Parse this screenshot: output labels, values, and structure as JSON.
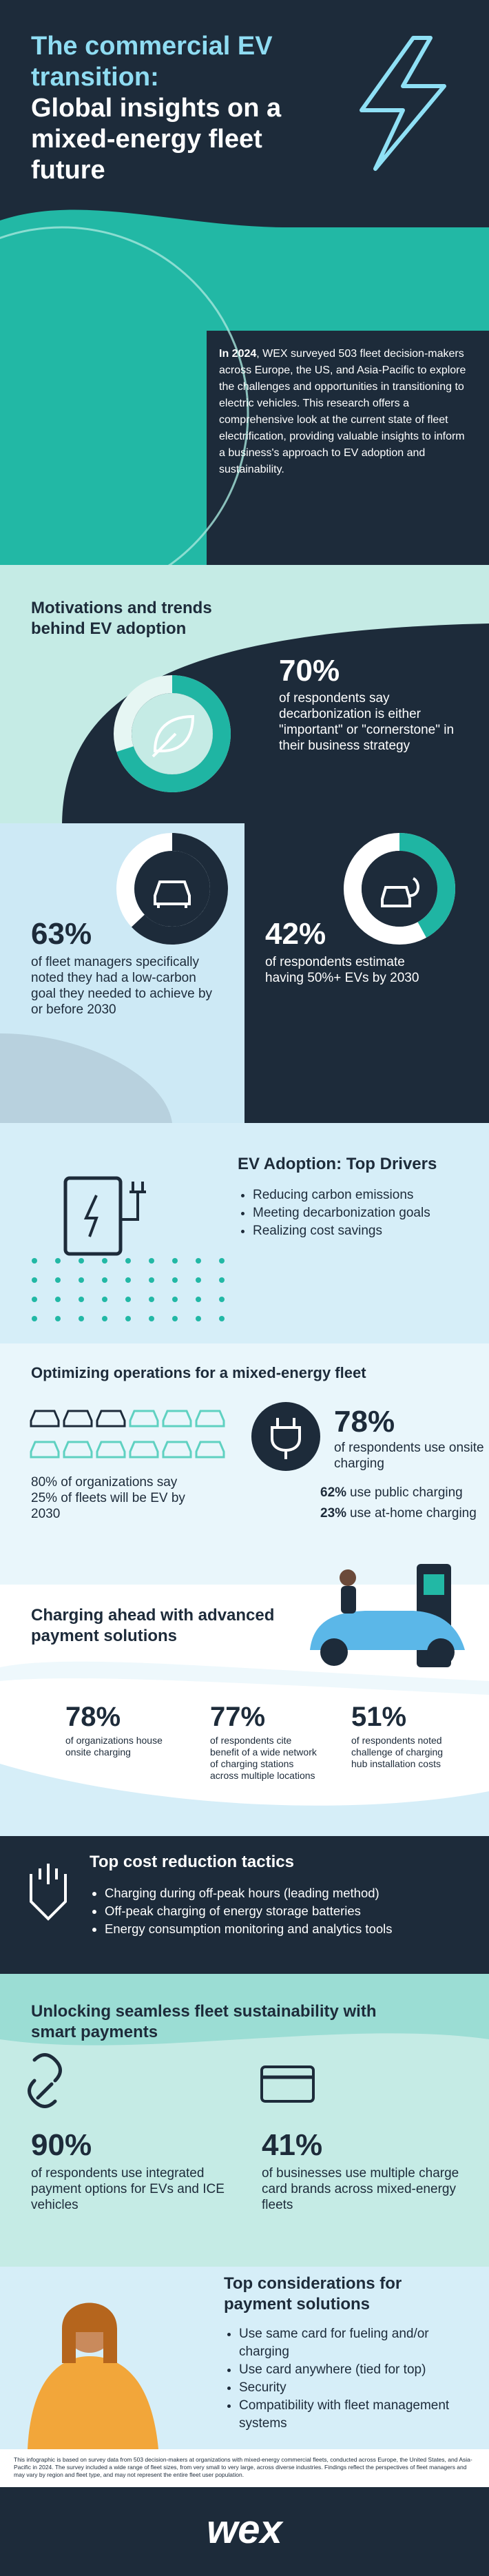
{
  "header": {
    "title_highlight": "The commercial EV transition:",
    "title": "Global insights on a mixed-energy fleet future"
  },
  "intro": {
    "lead": "In 2024",
    "text": ", WEX surveyed 503 fleet decision-makers across Europe, the US, and Asia-Pacific to explore the challenges and opportunities in transitioning to electric vehicles. This research offers a comprehensive look at the current state of fleet electrification, providing valuable insights to inform a business's approach to EV adoption and sustainability."
  },
  "motivations": {
    "title": "Motivations and trends behind EV adoption",
    "stats": [
      {
        "value": "70%",
        "text": "of respondents say decarbonization is either \"important\" or \"cornerstone\" in their business strategy"
      },
      {
        "value": "63%",
        "text": "of fleet managers specifically noted they had a low-carbon goal they needed to achieve by or before 2030"
      },
      {
        "value": "42%",
        "text": "of respondents estimate having 50%+ EVs by 2030"
      }
    ]
  },
  "drivers": {
    "title": "EV Adoption: Top Drivers",
    "items": [
      "Reducing carbon emissions",
      "Meeting decarbonization goals",
      "Realizing cost savings"
    ]
  },
  "operations": {
    "title": "Optimizing operations for a mixed-energy fleet",
    "fleet_note": "80% of organizations say 25% of fleets will be EV by 2030",
    "onsite": {
      "value": "78%",
      "text": "of respondents use onsite charging"
    },
    "other": [
      {
        "value": "62%",
        "text": "use public charging"
      },
      {
        "value": "23%",
        "text": "use at-home charging"
      }
    ]
  },
  "charging": {
    "title": "Charging ahead with advanced payment solutions",
    "stats": [
      {
        "value": "78%",
        "text": "of organizations house onsite charging"
      },
      {
        "value": "77%",
        "text": "of respondents cite benefit of a wide network of charging stations across multiple locations"
      },
      {
        "value": "51%",
        "text": "of respondents noted challenge of charging hub installation costs"
      }
    ]
  },
  "cost": {
    "title": "Top cost reduction tactics",
    "items": [
      "Charging during off-peak hours (leading method)",
      "Off-peak charging of energy storage batteries",
      "Energy consumption monitoring and analytics tools"
    ]
  },
  "payments": {
    "title": "Unlocking seamless fleet sustainability with smart payments",
    "stats": [
      {
        "value": "90%",
        "text": "of respondents use integrated payment options for EVs and ICE vehicles"
      },
      {
        "value": "41%",
        "text": "of businesses use multiple charge card brands across mixed-energy fleets"
      }
    ]
  },
  "considerations": {
    "title": "Top considerations for payment solutions",
    "items": [
      "Use same card for fueling and/or charging",
      "Use card anywhere (tied for top)",
      "Security",
      "Compatibility with fleet management systems"
    ]
  },
  "footnote": "This infographic is based on survey data from 503 decision-makers at organizations with mixed-energy commercial fleets, conducted across Europe, the United States, and Asia-Pacific in 2024. The survey included a wide range of fleet sizes, from very small to very large, across diverse industries. Findings reflect the perspectives of fleet managers and may vary by region and fleet type, and may not represent the entire fleet user population.",
  "footer": {
    "logo": "wex"
  }
}
